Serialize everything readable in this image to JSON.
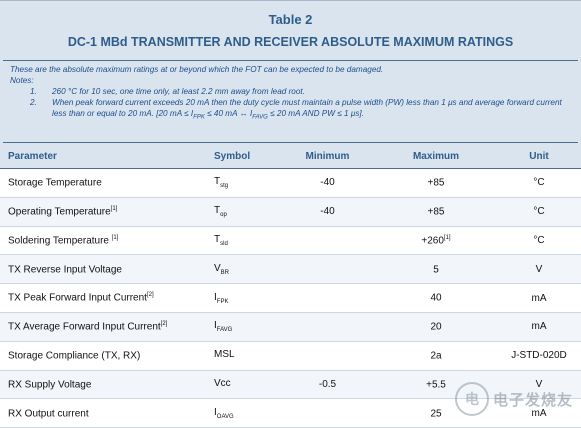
{
  "title": "Table 2",
  "subtitle": "DC-1 MBd TRANSMITTER AND RECEIVER ABSOLUTE MAXIMUM RATINGS",
  "intro": "These are the absolute maximum ratings at or beyond which the FOT can be expected to be damaged.",
  "notes_label": "Notes:",
  "notes": [
    {
      "num": "1.",
      "text": "260 °C for 10 sec, one time only, at least 2.2 mm away from lead root."
    },
    {
      "num": "2.",
      "text": "When peak forward current exceeds 20 mA then the duty cycle must maintain a pulse width (PW) less than 1 μs and average forward current less than or equal to 20 mA. [20 mA ≤ I",
      "sub1": "FPK",
      "text2": " ≤ 40 mA ↔ I",
      "sub2": "FAVG",
      "text3": " ≤ 20 mA AND PW ≤ 1 μs]."
    }
  ],
  "headers": {
    "param": "Parameter",
    "symbol": "Symbol",
    "min": "Minimum",
    "max": "Maximum",
    "unit": "Unit"
  },
  "rows": [
    {
      "param": "Storage Temperature",
      "sup": "",
      "sym": "T",
      "sym_sub": "stg",
      "min": "-40",
      "max": "+85",
      "max_sup": "",
      "unit": "°C"
    },
    {
      "param": "Operating Temperature",
      "sup": "[1]",
      "sym": "T",
      "sym_sub": "op",
      "min": "-40",
      "max": "+85",
      "max_sup": "",
      "unit": "°C"
    },
    {
      "param": "Soldering Temperature ",
      "sup": "[1]",
      "sym": "T",
      "sym_sub": "sld",
      "min": "",
      "max": "+260",
      "max_sup": "[1]",
      "unit": "°C"
    },
    {
      "param": "TX Reverse Input Voltage",
      "sup": "",
      "sym": "V",
      "sym_sub": "BR",
      "min": "",
      "max": "5",
      "max_sup": "",
      "unit": "V"
    },
    {
      "param": "TX Peak Forward Input Current",
      "sup": "[2]",
      "sym": "I",
      "sym_sub": "FPK",
      "min": "",
      "max": "40",
      "max_sup": "",
      "unit": "mA"
    },
    {
      "param": "TX Average Forward Input Current",
      "sup": "[2]",
      "sym": "I",
      "sym_sub": "FAVG",
      "min": "",
      "max": "20",
      "max_sup": "",
      "unit": "mA"
    },
    {
      "param": "Storage Compliance (TX, RX)",
      "sup": "",
      "sym": "MSL",
      "sym_sub": "",
      "min": "",
      "max": "2a",
      "max_sup": "",
      "unit": "J-STD-020D"
    },
    {
      "param": "RX Supply Voltage",
      "sup": "",
      "sym": "Vcc",
      "sym_sub": "",
      "min": "-0.5",
      "max": "+5.5",
      "max_sup": "",
      "unit": "V"
    },
    {
      "param": "RX Output current",
      "sup": "",
      "sym": "I",
      "sym_sub": "OAVG",
      "min": "",
      "max": "25",
      "max_sup": "",
      "unit": "mA"
    }
  ],
  "watermark": {
    "logo": "电",
    "text": "电子发烧友"
  }
}
